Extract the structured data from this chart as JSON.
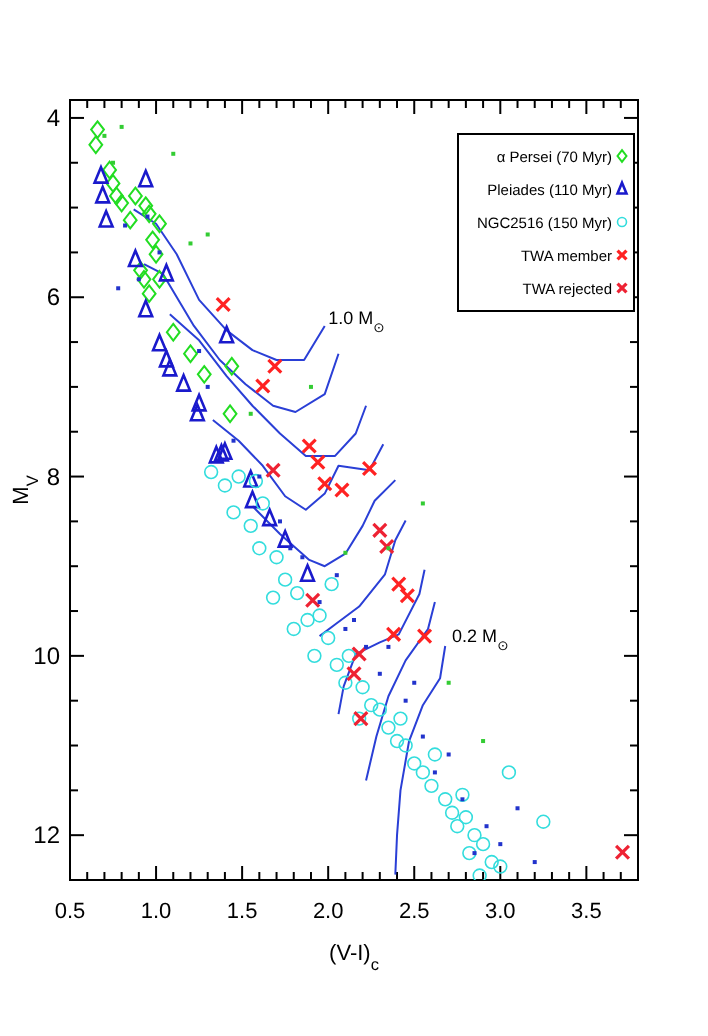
{
  "chart_data": {
    "type": "scatter",
    "xlabel": "(V-I)$_{c}$",
    "ylabel": "M$_{V}$",
    "xlim": [
      0.5,
      3.8
    ],
    "ylim": [
      12.5,
      3.8
    ],
    "xticks": [
      0.5,
      {
        "value": 0.6,
        "label": null
      },
      {
        "value": 0.7,
        "label": null
      },
      {
        "value": 0.8,
        "label": null
      },
      {
        "value": 0.9,
        "label": null
      },
      {
        "value": 1,
        "label": "1.0"
      },
      {
        "value": 1.1,
        "label": null
      },
      {
        "value": 1.2,
        "label": null
      },
      {
        "value": 1.3,
        "label": null
      },
      {
        "value": 1.4,
        "label": null
      },
      1.5,
      {
        "value": 1.6,
        "label": null
      },
      {
        "value": 1.7,
        "label": null
      },
      {
        "value": 1.8,
        "label": null
      },
      {
        "value": 1.9,
        "label": null
      },
      {
        "value": 2,
        "label": "2.0"
      },
      {
        "value": 2.1,
        "label": null
      },
      {
        "value": 2.2,
        "label": null
      },
      {
        "value": 2.3,
        "label": null
      },
      {
        "value": 2.4,
        "label": null
      },
      2.5,
      {
        "value": 2.6,
        "label": null
      },
      {
        "value": 2.7,
        "label": null
      },
      {
        "value": 2.8,
        "label": null
      },
      {
        "value": 2.9,
        "label": null
      },
      {
        "value": 3,
        "label": "3.0"
      },
      {
        "value": 3.1,
        "label": null
      },
      {
        "value": 3.2,
        "label": null
      },
      {
        "value": 3.3,
        "label": null
      },
      {
        "value": 3.4,
        "label": null
      },
      3.5,
      {
        "value": 3.6,
        "label": null
      },
      {
        "value": 3.7,
        "label": null
      }
    ],
    "yticks": [
      4,
      {
        "value": 4.5,
        "label": null
      },
      {
        "value": 5,
        "label": null
      },
      {
        "value": 5.5,
        "label": null
      },
      6,
      {
        "value": 6.5,
        "label": null
      },
      {
        "value": 7,
        "label": null
      },
      {
        "value": 7.5,
        "label": null
      },
      8,
      {
        "value": 8.5,
        "label": null
      },
      {
        "value": 9,
        "label": null
      },
      {
        "value": 9.5,
        "label": null
      },
      10,
      {
        "value": 10.5,
        "label": null
      },
      {
        "value": 11,
        "label": null
      },
      {
        "value": 11.5,
        "label": null
      },
      12
    ],
    "legend": "top right",
    "grid": false,
    "annotations": [
      {
        "text": "1.0 M$_{⊙}$",
        "x": 2.0,
        "y": 6.3
      },
      {
        "text": "0.2 M$_{⊙}$",
        "x": 2.72,
        "y": 9.85
      }
    ],
    "series": [
      {
        "name": "α Persei (70 Myr)",
        "color": "#22dd22",
        "marker": "diamond",
        "x": [
          0.66,
          0.65,
          0.73,
          0.75,
          0.77,
          0.8,
          0.88,
          0.85,
          0.94,
          1.02,
          0.98,
          0.91,
          0.93,
          0.96,
          1.02,
          1.0,
          1.1,
          1.2,
          1.28,
          1.44,
          1.43,
          0.96
        ],
        "values": [
          4.13,
          4.3,
          4.58,
          4.73,
          4.87,
          4.95,
          4.87,
          5.14,
          4.98,
          5.18,
          5.36,
          5.7,
          5.8,
          5.96,
          5.8,
          5.52,
          6.39,
          6.63,
          6.86,
          6.77,
          7.3,
          5.07
        ]
      },
      {
        "name": "Pleiades (110 Myr)",
        "color": "#1a1acc",
        "marker": "triangle",
        "x": [
          0.68,
          0.69,
          0.71,
          0.94,
          0.88,
          1.06,
          0.94,
          1.02,
          1.06,
          1.08,
          1.16,
          1.25,
          1.24,
          1.35,
          1.38,
          1.4,
          1.55,
          1.56,
          1.66,
          1.75,
          1.88,
          1.41
        ],
        "values": [
          4.65,
          4.87,
          5.14,
          4.69,
          5.58,
          5.74,
          6.14,
          6.52,
          6.7,
          6.8,
          6.97,
          7.19,
          7.3,
          7.77,
          7.75,
          7.73,
          8.04,
          8.27,
          8.47,
          8.71,
          9.09,
          6.43
        ]
      },
      {
        "name": "NGC2516 (150 Myr)",
        "color": "#33dddd",
        "marker": "circle",
        "x": [
          1.32,
          1.4,
          1.48,
          1.45,
          1.55,
          1.62,
          1.6,
          1.7,
          1.75,
          1.68,
          1.82,
          1.88,
          1.8,
          1.95,
          2.0,
          1.92,
          2.05,
          2.12,
          2.1,
          2.2,
          2.25,
          2.18,
          2.3,
          2.35,
          2.4,
          2.45,
          2.42,
          2.5,
          2.55,
          2.6,
          2.62,
          2.68,
          2.72,
          2.75,
          2.8,
          2.85,
          2.82,
          2.9,
          2.95,
          3.0,
          2.88,
          2.78,
          3.05,
          3.25,
          2.02,
          1.58
        ],
        "values": [
          7.95,
          8.1,
          8.0,
          8.4,
          8.55,
          8.3,
          8.8,
          8.9,
          9.15,
          9.35,
          9.3,
          9.6,
          9.7,
          9.55,
          9.8,
          10.0,
          10.1,
          10.0,
          10.3,
          10.35,
          10.55,
          10.7,
          10.6,
          10.8,
          10.95,
          11.0,
          10.7,
          11.2,
          11.3,
          11.45,
          11.1,
          11.6,
          11.75,
          11.9,
          11.8,
          12.0,
          12.2,
          12.1,
          12.3,
          12.35,
          12.45,
          11.55,
          11.3,
          11.85,
          9.2,
          8.05
        ]
      },
      {
        "name": "TWA  member",
        "color": "#ff2222",
        "marker": "cross",
        "x": [
          1.39,
          1.69,
          1.62,
          1.89,
          1.94,
          2.24,
          2.08,
          1.98,
          2.41,
          2.46,
          2.56,
          2.38
        ],
        "values": [
          6.08,
          6.77,
          6.99,
          7.66,
          7.84,
          7.91,
          8.15,
          8.08,
          9.2,
          9.33,
          9.78,
          9.76
        ]
      },
      {
        "name": "TWA rejected",
        "color": "#ee2233",
        "marker": "cross",
        "x": [
          2.3,
          2.34,
          1.91,
          2.18,
          2.15,
          2.19,
          3.71,
          1.68
        ],
        "values": [
          8.6,
          8.78,
          9.38,
          9.98,
          10.2,
          10.7,
          12.19,
          7.93
        ]
      },
      {
        "color": "#2233cc",
        "marker": "square",
        "x": [
          0.95,
          1.02,
          0.78,
          0.82,
          1.3,
          1.45,
          1.6,
          1.72,
          1.85,
          1.95,
          2.05,
          2.1,
          2.22,
          2.3,
          2.45,
          2.55,
          2.62,
          2.7,
          2.78,
          2.85,
          2.92,
          3.0,
          3.1,
          3.2,
          2.5,
          2.35,
          2.15,
          1.78,
          1.25,
          0.9
        ],
        "values": [
          5.1,
          5.5,
          5.9,
          5.2,
          7.0,
          7.6,
          8.0,
          8.5,
          8.9,
          9.4,
          9.1,
          9.7,
          9.9,
          10.2,
          10.5,
          10.9,
          11.3,
          11.1,
          11.6,
          12.2,
          11.9,
          12.1,
          11.7,
          12.3,
          10.3,
          9.9,
          9.6,
          8.8,
          6.6,
          5.8
        ]
      },
      {
        "color": "#33cc33",
        "marker": "square",
        "x": [
          0.7,
          0.75,
          0.8,
          1.3,
          1.55,
          1.9,
          2.1,
          2.35,
          2.55,
          2.7,
          2.9,
          1.1,
          1.2
        ],
        "values": [
          4.2,
          4.5,
          4.1,
          5.3,
          7.3,
          7.0,
          8.85,
          8.8,
          8.3,
          10.3,
          10.95,
          4.4,
          5.4
        ]
      },
      {
        "type": "line",
        "color": "#2a3fd6",
        "marker": "none",
        "x": [
          1.98,
          1.86,
          1.7,
          1.56,
          1.41,
          1.25,
          1.12,
          1.0,
          0.87
        ],
        "values": [
          6.32,
          6.7,
          6.7,
          6.59,
          6.37,
          6.03,
          5.52,
          5.18,
          5.02
        ]
      },
      {
        "type": "line",
        "color": "#2a3fd6",
        "marker": "none",
        "x": [
          2.06,
          1.98,
          1.81,
          1.68,
          1.52,
          1.37,
          1.22,
          1.04,
          0.93
        ],
        "values": [
          6.63,
          7.08,
          7.28,
          7.21,
          6.97,
          6.7,
          6.32,
          5.74,
          5.63
        ]
      },
      {
        "type": "line",
        "color": "#2a3fd6",
        "marker": "none",
        "x": [
          2.22,
          2.16,
          2.04,
          1.87,
          1.72,
          1.56,
          1.41,
          1.25,
          1.08
        ],
        "values": [
          7.21,
          7.52,
          7.77,
          7.77,
          7.52,
          7.21,
          6.88,
          6.48,
          6.19
        ]
      },
      {
        "type": "line",
        "color": "#2a3fd6",
        "marker": "none",
        "x": [
          2.32,
          2.24,
          2.06,
          1.98,
          1.87,
          1.75,
          1.62,
          1.48,
          1.33
        ],
        "values": [
          7.64,
          7.93,
          7.88,
          8.19,
          8.37,
          8.22,
          7.88,
          7.6,
          7.37
        ]
      },
      {
        "type": "line",
        "color": "#2a3fd6",
        "marker": "none",
        "x": [
          2.39,
          2.27,
          2.2,
          2.1,
          1.98,
          1.89,
          1.72,
          1.56
        ],
        "values": [
          8.04,
          8.27,
          8.55,
          8.86,
          9.0,
          8.93,
          8.64,
          8.33
        ]
      },
      {
        "type": "line",
        "color": "#2a3fd6",
        "marker": "none",
        "x": [
          2.45,
          2.39,
          2.33,
          2.18,
          2.04,
          1.95
        ],
        "values": [
          8.49,
          8.71,
          9.09,
          9.45,
          9.65,
          9.78
        ]
      },
      {
        "type": "line",
        "color": "#2a3fd6",
        "marker": "none",
        "x": [
          2.56,
          2.53,
          2.41,
          2.3,
          2.16,
          2.09,
          2.06
        ],
        "values": [
          9.04,
          9.31,
          9.76,
          9.85,
          9.98,
          10.34,
          10.65
        ]
      },
      {
        "type": "line",
        "color": "#2a3fd6",
        "marker": "none",
        "x": [
          2.62,
          2.58,
          2.45,
          2.35,
          2.28,
          2.22
        ],
        "values": [
          9.4,
          9.7,
          10.05,
          10.45,
          10.9,
          11.39
        ]
      },
      {
        "type": "line",
        "color": "#2a3fd6",
        "marker": "none",
        "x": [
          2.68,
          2.65,
          2.55,
          2.47,
          2.42,
          2.4,
          2.39
        ],
        "values": [
          9.89,
          10.25,
          10.55,
          10.95,
          11.5,
          12.0,
          12.44
        ]
      }
    ]
  }
}
